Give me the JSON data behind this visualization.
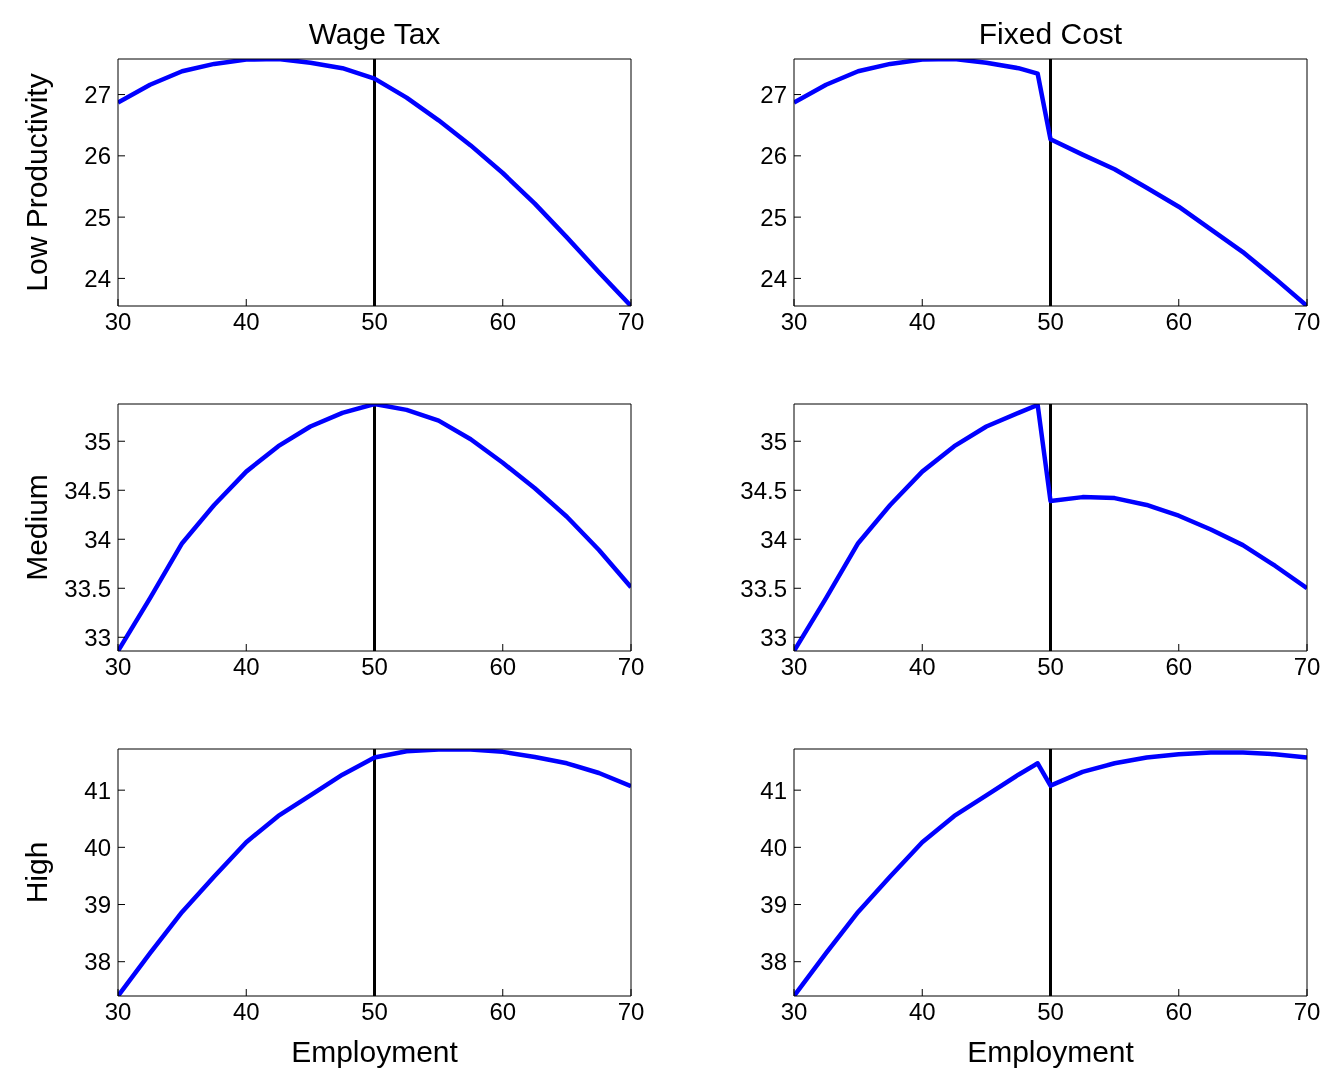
{
  "chart_data": [
    {
      "type": "line",
      "title": "Wage Tax",
      "ylabel": "Low Productivity",
      "x": [
        30,
        32.5,
        35,
        37.5,
        40,
        42.5,
        45,
        47.5,
        50,
        52.5,
        55,
        57.5,
        60,
        62.5,
        65,
        67.5,
        70
      ],
      "xlim": [
        30,
        70
      ],
      "xticks": [
        30,
        40,
        50,
        60,
        70
      ],
      "ylim": [
        23.55,
        27.58
      ],
      "yticks": [
        24,
        25,
        26,
        27
      ],
      "series": [
        {
          "color": "#0000ff",
          "values": [
            26.87,
            27.16,
            27.38,
            27.5,
            27.57,
            27.58,
            27.52,
            27.43,
            27.26,
            26.95,
            26.58,
            26.17,
            25.72,
            25.22,
            24.67,
            24.1,
            23.55
          ]
        }
      ],
      "ref_lines": [
        {
          "axis": "x",
          "value": 50,
          "color": "#000000"
        }
      ]
    },
    {
      "type": "line",
      "title": "Fixed Cost",
      "x": [
        30,
        32.5,
        35,
        37.5,
        40,
        42.5,
        45,
        47.5,
        49,
        50,
        52.5,
        55,
        57.5,
        60,
        62.5,
        65,
        67.5,
        70
      ],
      "xlim": [
        30,
        70
      ],
      "xticks": [
        30,
        40,
        50,
        60,
        70
      ],
      "ylim": [
        23.55,
        27.58
      ],
      "yticks": [
        24,
        25,
        26,
        27
      ],
      "series": [
        {
          "color": "#0000ff",
          "values": [
            26.87,
            27.16,
            27.38,
            27.5,
            27.57,
            27.58,
            27.52,
            27.43,
            27.34,
            26.27,
            26.02,
            25.78,
            25.48,
            25.17,
            24.8,
            24.43,
            24.0,
            23.55
          ]
        }
      ],
      "ref_lines": [
        {
          "axis": "x",
          "value": 50,
          "color": "#000000"
        }
      ]
    },
    {
      "type": "line",
      "ylabel": "Medium",
      "x": [
        30,
        32.5,
        35,
        37.5,
        40,
        42.5,
        45,
        47.5,
        50,
        52.5,
        55,
        57.5,
        60,
        62.5,
        65,
        67.5,
        70
      ],
      "xlim": [
        30,
        70
      ],
      "xticks": [
        30,
        40,
        50,
        60,
        70
      ],
      "ylim": [
        32.86,
        35.38
      ],
      "yticks": [
        33,
        33.5,
        34,
        34.5,
        35
      ],
      "series": [
        {
          "color": "#0000ff",
          "values": [
            32.86,
            33.4,
            33.96,
            34.35,
            34.69,
            34.95,
            35.15,
            35.29,
            35.38,
            35.32,
            35.21,
            35.02,
            34.78,
            34.52,
            34.23,
            33.89,
            33.51
          ]
        }
      ],
      "ref_lines": [
        {
          "axis": "x",
          "value": 50,
          "color": "#000000"
        }
      ]
    },
    {
      "type": "line",
      "x": [
        30,
        32.5,
        35,
        37.5,
        40,
        42.5,
        45,
        47.5,
        49,
        50,
        52.5,
        55,
        57.5,
        60,
        62.5,
        65,
        67.5,
        70
      ],
      "xlim": [
        30,
        70
      ],
      "xticks": [
        30,
        40,
        50,
        60,
        70
      ],
      "ylim": [
        32.86,
        35.38
      ],
      "yticks": [
        33,
        33.5,
        34,
        34.5,
        35
      ],
      "series": [
        {
          "color": "#0000ff",
          "values": [
            32.86,
            33.4,
            33.96,
            34.35,
            34.69,
            34.95,
            35.15,
            35.29,
            35.37,
            34.39,
            34.43,
            34.42,
            34.35,
            34.24,
            34.1,
            33.94,
            33.73,
            33.5
          ]
        }
      ],
      "ref_lines": [
        {
          "axis": "x",
          "value": 50,
          "color": "#000000"
        }
      ]
    },
    {
      "type": "line",
      "ylabel": "High",
      "xlabel": "Employment",
      "x": [
        30,
        32.5,
        35,
        37.5,
        40,
        42.5,
        45,
        47.5,
        50,
        52.5,
        55,
        57.5,
        60,
        62.5,
        65,
        67.5,
        70
      ],
      "xlim": [
        30,
        70
      ],
      "xticks": [
        30,
        40,
        50,
        60,
        70
      ],
      "ylim": [
        37.4,
        41.72
      ],
      "yticks": [
        38,
        39,
        40,
        41
      ],
      "series": [
        {
          "color": "#0000ff",
          "values": [
            37.4,
            38.15,
            38.87,
            39.49,
            40.09,
            40.55,
            40.91,
            41.27,
            41.57,
            41.68,
            41.71,
            41.71,
            41.67,
            41.58,
            41.47,
            41.3,
            41.07
          ]
        }
      ],
      "ref_lines": [
        {
          "axis": "x",
          "value": 50,
          "color": "#000000"
        }
      ]
    },
    {
      "type": "line",
      "xlabel": "Employment",
      "x": [
        30,
        32.5,
        35,
        37.5,
        40,
        42.5,
        45,
        47.5,
        49,
        50,
        52.5,
        55,
        57.5,
        60,
        62.5,
        65,
        67.5,
        70
      ],
      "xlim": [
        30,
        70
      ],
      "xticks": [
        30,
        40,
        50,
        60,
        70
      ],
      "ylim": [
        37.4,
        41.72
      ],
      "yticks": [
        38,
        39,
        40,
        41
      ],
      "series": [
        {
          "color": "#0000ff",
          "values": [
            37.4,
            38.15,
            38.87,
            39.49,
            40.09,
            40.55,
            40.91,
            41.27,
            41.47,
            41.08,
            41.32,
            41.47,
            41.57,
            41.63,
            41.66,
            41.66,
            41.63,
            41.57
          ]
        }
      ],
      "ref_lines": [
        {
          "axis": "x",
          "value": 50,
          "color": "#000000"
        }
      ]
    }
  ]
}
